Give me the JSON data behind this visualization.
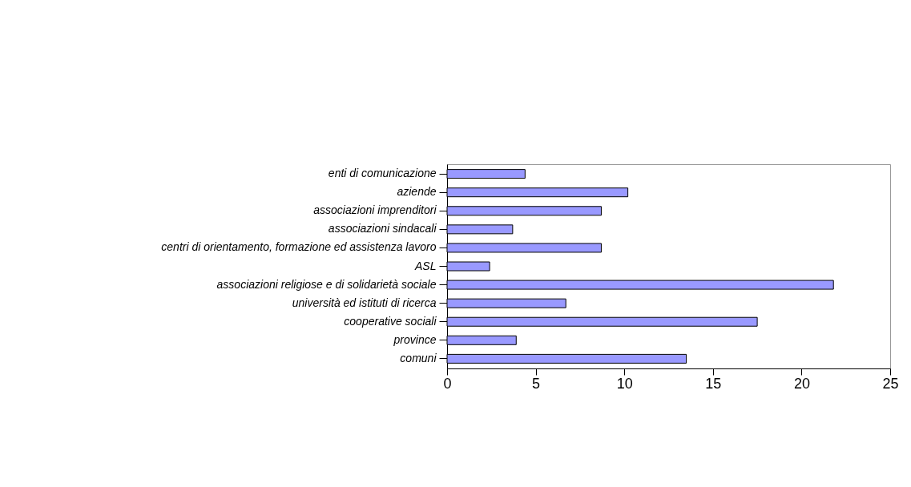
{
  "chart_data": {
    "type": "bar",
    "orientation": "horizontal",
    "categories": [
      "enti di comunicazione",
      "aziende",
      "associazioni imprenditori",
      "associazioni sindacali",
      "centri di orientamento, formazione ed assistenza lavoro",
      "ASL",
      "associazioni religiose e di solidarietà sociale",
      "università ed istituti di ricerca",
      "cooperative sociali",
      "province",
      "comuni"
    ],
    "values": [
      4.4,
      10.2,
      8.7,
      3.7,
      8.7,
      2.4,
      21.8,
      6.7,
      17.5,
      3.9,
      13.5
    ],
    "color": "#9999ff",
    "xlim": [
      0,
      25
    ],
    "xticks": [
      0,
      5,
      10,
      15,
      20,
      25
    ],
    "grid": false
  }
}
